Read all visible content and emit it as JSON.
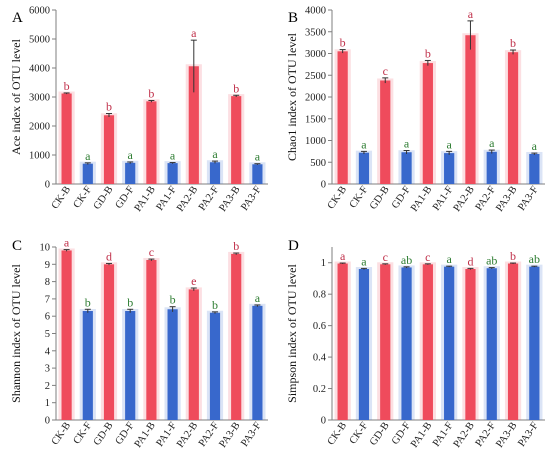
{
  "colors": {
    "B": "#ef4b5c",
    "F": "#3868cc",
    "sig_B": "#c0304a",
    "sig_F": "#2e7d32"
  },
  "chart_data": [
    {
      "panel": "A",
      "type": "bar",
      "categories": [
        "CK-B",
        "CK-F",
        "GD-B",
        "GD-F",
        "PA1-B",
        "PA1-F",
        "PA2-B",
        "PA2-F",
        "PA3-B",
        "PA3-F"
      ],
      "values": [
        3120,
        700,
        2370,
        730,
        2850,
        720,
        4060,
        750,
        3030,
        680
      ],
      "errors": [
        20,
        30,
        60,
        30,
        30,
        20,
        900,
        40,
        30,
        20
      ],
      "letters": [
        "b",
        "a",
        "b",
        "a",
        "b",
        "a",
        "a",
        "a",
        "b",
        "a"
      ],
      "ylabel": "Ace index of OTU level",
      "yticks": [
        "0",
        "1000",
        "2000",
        "3000",
        "4000",
        "5000",
        "6000"
      ],
      "ylim": [
        0,
        6000
      ]
    },
    {
      "panel": "B",
      "type": "bar",
      "categories": [
        "CK-B",
        "CK-F",
        "GD-B",
        "GD-F",
        "PA1-B",
        "PA1-F",
        "PA2-B",
        "PA2-F",
        "PA3-B",
        "PA3-F"
      ],
      "values": [
        3050,
        720,
        2380,
        730,
        2780,
        710,
        3420,
        740,
        3030,
        690
      ],
      "errors": [
        40,
        30,
        60,
        40,
        60,
        40,
        330,
        40,
        50,
        20
      ],
      "letters": [
        "b",
        "a",
        "c",
        "a",
        "b",
        "a",
        "a",
        "a",
        "b",
        "a"
      ],
      "ylabel": "Chao1 index of OTU level",
      "yticks": [
        "0",
        "500",
        "1000",
        "1500",
        "2000",
        "2500",
        "3000",
        "3500",
        "4000"
      ],
      "ylim": [
        0,
        4000
      ]
    },
    {
      "panel": "C",
      "type": "bar",
      "categories": [
        "CK-B",
        "CK-F",
        "GD-B",
        "GD-F",
        "PA1-B",
        "PA1-F",
        "PA2-B",
        "PA2-F",
        "PA3-B",
        "PA3-F"
      ],
      "values": [
        9.8,
        6.3,
        9.0,
        6.3,
        9.25,
        6.4,
        7.55,
        6.2,
        9.6,
        6.6
      ],
      "errors": [
        0.05,
        0.1,
        0.05,
        0.1,
        0.05,
        0.15,
        0.08,
        0.05,
        0.05,
        0.05
      ],
      "letters": [
        "a",
        "b",
        "d",
        "b",
        "c",
        "b",
        "e",
        "b",
        "b",
        "a"
      ],
      "ylabel": "Shannon index of OTU level",
      "yticks": [
        "0",
        "1",
        "2",
        "3",
        "4",
        "5",
        "6",
        "7",
        "8",
        "9",
        "10"
      ],
      "ylim": [
        0,
        10
      ]
    },
    {
      "panel": "D",
      "type": "bar",
      "categories": [
        "CK-B",
        "CK-F",
        "GD-B",
        "GD-F",
        "PA1-B",
        "PA1-F",
        "PA2-B",
        "PA2-F",
        "PA3-B",
        "PA3-F"
      ],
      "values": [
        0.995,
        0.96,
        0.99,
        0.97,
        0.99,
        0.975,
        0.96,
        0.965,
        0.995,
        0.975
      ],
      "errors": [
        0.003,
        0.004,
        0.003,
        0.004,
        0.003,
        0.003,
        0.004,
        0.004,
        0.003,
        0.003
      ],
      "letters": [
        "a",
        "a",
        "c",
        "ab",
        "c",
        "a",
        "d",
        "ab",
        "b",
        "ab"
      ],
      "ylabel": "Simpson index of OTU level",
      "yticks": [
        "0",
        "0.2",
        "0.4",
        "0.6",
        "0.8",
        "1"
      ],
      "ylim": [
        0,
        1.1
      ]
    }
  ]
}
